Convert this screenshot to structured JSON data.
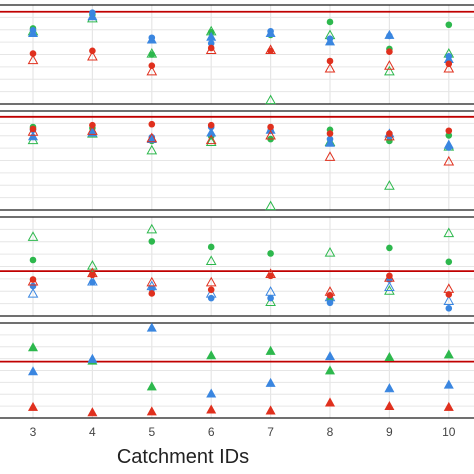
{
  "chart_data": {
    "type": "scatter",
    "title": "",
    "xlabel": "Catchment IDs",
    "x": [
      3,
      4,
      5,
      6,
      7,
      8,
      9,
      10
    ],
    "xlim": [
      2.5,
      10.4
    ],
    "colors": {
      "red": "#e0301e",
      "green": "#2db84d",
      "blue": "#3a86e0",
      "reference_line": "#c00000",
      "border": "#1a1a1a",
      "grid": "#e6e6e6"
    },
    "marker_legend": {
      "filled_circle": "circle",
      "open_triangle": "open triangle",
      "filled_triangle": "filled triangle"
    },
    "panels": [
      {
        "ylim": [
          0,
          10
        ],
        "reference_line": 9.6,
        "series": [
          {
            "color": "green",
            "marker": "circle",
            "values": [
              7.8,
              9.3,
              5.0,
              7.4,
              7.1,
              8.5,
              5.6,
              8.2
            ]
          },
          {
            "color": "green",
            "marker": "open-triangle",
            "values": [
              7.5,
              8.9,
              5.1,
              7.5,
              0.1,
              7.1,
              3.2,
              5.1
            ]
          },
          {
            "color": "blue",
            "marker": "circle",
            "values": [
              7.6,
              9.5,
              6.8,
              6.2,
              7.5,
              6.7,
              7.0,
              4.8
            ]
          },
          {
            "color": "blue",
            "marker": "triangle",
            "values": [
              7.3,
              9.1,
              6.6,
              6.9,
              7.3,
              6.4,
              7.1,
              4.5
            ]
          },
          {
            "color": "red",
            "marker": "circle",
            "values": [
              5.1,
              5.4,
              3.8,
              5.7,
              5.4,
              4.3,
              5.3,
              4.0
            ]
          },
          {
            "color": "red",
            "marker": "open-triangle",
            "values": [
              4.4,
              4.8,
              3.2,
              5.5,
              5.5,
              3.5,
              3.8,
              3.5
            ]
          }
        ]
      },
      {
        "ylim": [
          0,
          10
        ],
        "reference_line": 9.7,
        "series": [
          {
            "color": "green",
            "marker": "circle",
            "values": [
              8.6,
              8.5,
              7.1,
              7.6,
              7.3,
              8.3,
              7.1,
              7.7
            ]
          },
          {
            "color": "green",
            "marker": "open-triangle",
            "values": [
              7.2,
              7.9,
              6.1,
              7.0,
              0.1,
              7.0,
              2.3,
              6.5
            ]
          },
          {
            "color": "blue",
            "marker": "circle",
            "values": [
              8.3,
              8.0,
              7.5,
              8.6,
              8.2,
              7.3,
              7.6,
              6.4
            ]
          },
          {
            "color": "blue",
            "marker": "triangle",
            "values": [
              7.6,
              8.0,
              7.3,
              8.0,
              8.3,
              6.9,
              7.9,
              6.7
            ]
          },
          {
            "color": "red",
            "marker": "circle",
            "values": [
              8.4,
              8.8,
              8.9,
              8.8,
              8.6,
              7.9,
              7.9,
              8.2
            ]
          },
          {
            "color": "red",
            "marker": "open-triangle",
            "values": [
              8.1,
              8.2,
              7.4,
              7.2,
              7.7,
              5.4,
              7.6,
              4.9
            ]
          }
        ]
      },
      {
        "ylim": [
          0,
          10
        ],
        "reference_line": 4.5,
        "series": [
          {
            "color": "green",
            "marker": "circle",
            "values": [
              5.7,
              4.2,
              7.7,
              7.1,
              6.4,
              1.4,
              7.0,
              5.5
            ]
          },
          {
            "color": "green",
            "marker": "open-triangle",
            "values": [
              8.2,
              5.1,
              9.0,
              5.6,
              1.2,
              6.5,
              2.4,
              8.6
            ]
          },
          {
            "color": "blue",
            "marker": "circle",
            "values": [
              2.9,
              3.3,
              2.6,
              1.6,
              1.6,
              1.1,
              3.6,
              0.5
            ]
          },
          {
            "color": "blue",
            "marker": "open-triangle",
            "values": [
              2.1,
              3.4,
              2.9,
              2.1,
              2.3,
              1.7,
              2.8,
              1.3
            ]
          },
          {
            "color": "red",
            "marker": "circle",
            "values": [
              3.6,
              4.1,
              2.1,
              2.5,
              4.0,
              1.9,
              4.0,
              2.0
            ]
          },
          {
            "color": "red",
            "marker": "open-triangle",
            "values": [
              3.4,
              4.3,
              3.3,
              3.3,
              4.2,
              2.3,
              3.8,
              2.6
            ]
          }
        ]
      },
      {
        "ylim": [
          0,
          10
        ],
        "reference_line": 6.0,
        "series": [
          {
            "color": "green",
            "marker": "triangle",
            "values": [
              7.6,
              6.1,
              3.2,
              6.7,
              7.2,
              5.0,
              6.5,
              6.8
            ]
          },
          {
            "color": "blue",
            "marker": "triangle",
            "values": [
              4.9,
              6.3,
              9.8,
              2.4,
              3.6,
              6.6,
              3.0,
              3.4
            ]
          },
          {
            "color": "red",
            "marker": "triangle",
            "values": [
              0.9,
              0.3,
              0.4,
              0.6,
              0.5,
              1.4,
              1.0,
              0.9
            ]
          }
        ]
      }
    ]
  }
}
